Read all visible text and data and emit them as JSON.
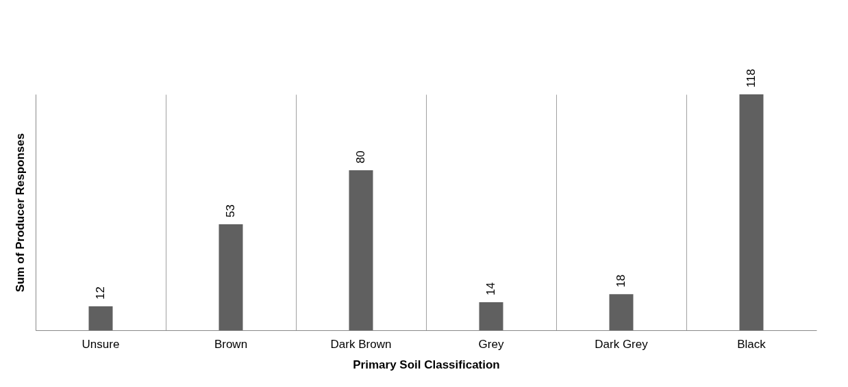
{
  "chart_data": {
    "type": "bar",
    "xlabel": "Primary Soil Classification",
    "ylabel": "Sum of Producer Responses",
    "categories": [
      "Unsure",
      "Brown",
      "Dark Brown",
      "Grey",
      "Dark Grey",
      "Black"
    ],
    "values": [
      12,
      53,
      80,
      14,
      18,
      118
    ],
    "color": "#606060",
    "data_labels": true,
    "grid": "x"
  }
}
